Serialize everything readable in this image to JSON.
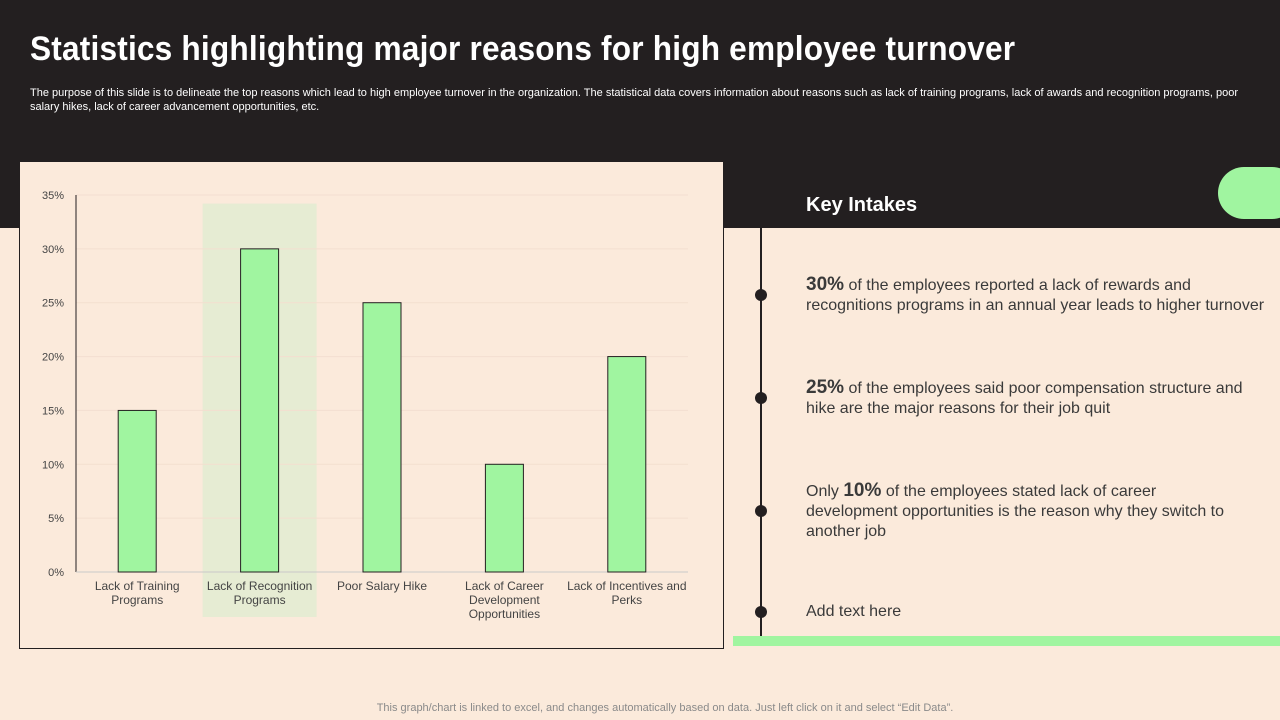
{
  "slide": {
    "title": "Statistics highlighting major reasons for high employee turnover",
    "subtitle": "The purpose of this slide is to delineate the top reasons which lead to high employee turnover in the organization. The statistical data covers information about reasons such as lack of training programs, lack of awards and recognition programs, poor salary hikes, lack of career advancement opportunities, etc.",
    "footnote": "This graph/chart is linked to excel, and changes automatically based on data. Just left click on it and select “Edit Data”."
  },
  "chart_data": {
    "type": "bar",
    "categories": [
      [
        "Lack of Training",
        "Programs"
      ],
      [
        "Lack of Recognition",
        "Programs"
      ],
      [
        "Poor Salary Hike"
      ],
      [
        "Lack of Career",
        "Development",
        "Opportunities"
      ],
      [
        "Lack of Incentives and",
        "Perks"
      ]
    ],
    "values": [
      15,
      30,
      25,
      10,
      20
    ],
    "highlighted_category_index": 1,
    "ylim": [
      0,
      35
    ],
    "yticks": [
      0,
      5,
      10,
      15,
      20,
      25,
      30,
      35
    ],
    "tick_suffix": "%",
    "grid": true,
    "colors": {
      "bar": "#a0f5a0",
      "bar_stroke": "#231f20",
      "highlight": "#e6ecd3"
    }
  },
  "key_intakes": {
    "heading": "Key Intakes",
    "points": [
      {
        "prefix": "",
        "value": "30%",
        "text": " of the employees reported a lack of rewards and recognitions programs in an annual year leads to higher turnover"
      },
      {
        "prefix": "",
        "value": "25%",
        "text": " of the employees said poor compensation structure  and hike are the major reasons for their job quit"
      },
      {
        "prefix": "Only ",
        "value": "10%",
        "text": " of the employees stated lack of career development opportunities is the reason why they switch to another job"
      },
      {
        "prefix": "",
        "value": "",
        "text": "Add text here"
      }
    ]
  },
  "colors": {
    "dark": "#231f20",
    "accent_green": "#a0f5a0",
    "background": "#fbeadb"
  }
}
